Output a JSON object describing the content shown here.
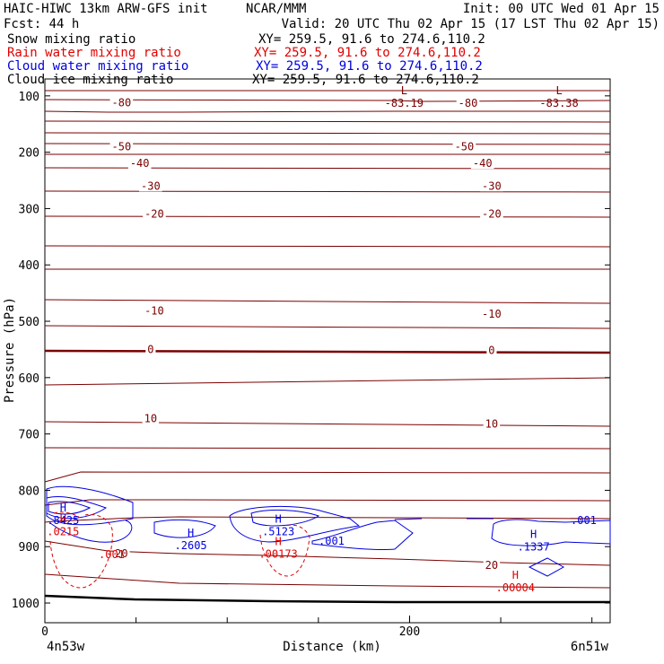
{
  "header": {
    "model_line": "HAIC-HIWC 13km ARW-GFS init",
    "org": "NCAR/MMM",
    "init": "Init: 00 UTC Wed 01 Apr 15",
    "fcst": "Fcst:   44 h",
    "valid": "Valid: 20 UTC Thu 02 Apr 15 (17 LST Thu 02 Apr 15)"
  },
  "fields": [
    {
      "name": "Snow mixing ratio",
      "xy": "XY= 259.5, 91.6 to 274.6,110.2",
      "color": "#000000"
    },
    {
      "name": "Rain water mixing ratio",
      "xy": "XY= 259.5, 91.6 to 274.6,110.2",
      "color": "#e00000"
    },
    {
      "name": "Cloud water mixing ratio",
      "xy": "XY= 259.5, 91.6 to 274.6,110.2",
      "color": "#0000e0"
    },
    {
      "name": "Cloud ice mixing ratio",
      "xy": "XY= 259.5, 91.6 to 274.6,110.2",
      "color": "#000000"
    }
  ],
  "chart_data": {
    "type": "line",
    "subtype": "vertical cross-section contour plot",
    "xlabel": "Distance (km)",
    "ylabel": "Pressure (hPa)",
    "x_ticks": [
      0,
      200
    ],
    "x_range": [
      0,
      310
    ],
    "y_ticks": [
      100,
      200,
      300,
      400,
      500,
      600,
      700,
      800,
      900,
      1000
    ],
    "y_range": [
      70,
      1035
    ],
    "x_start_label": "4n53w",
    "x_end_label": "6n51w",
    "temperature_contour_labels": [
      {
        "text": "-80",
        "x": 42,
        "p": 112
      },
      {
        "text": "-80",
        "x": 232,
        "p": 113
      },
      {
        "text": "-50",
        "x": 42,
        "p": 190
      },
      {
        "text": "-50",
        "x": 230,
        "p": 190
      },
      {
        "text": "-40",
        "x": 52,
        "p": 220
      },
      {
        "text": "-40",
        "x": 240,
        "p": 220
      },
      {
        "text": "-30",
        "x": 58,
        "p": 260
      },
      {
        "text": "-30",
        "x": 245,
        "p": 260
      },
      {
        "text": "-20",
        "x": 60,
        "p": 310
      },
      {
        "text": "-20",
        "x": 245,
        "p": 310
      },
      {
        "text": "-10",
        "x": 60,
        "p": 482
      },
      {
        "text": "-10",
        "x": 245,
        "p": 487
      },
      {
        "text": "0",
        "x": 58,
        "p": 550
      },
      {
        "text": "0",
        "x": 245,
        "p": 552
      },
      {
        "text": "10",
        "x": 58,
        "p": 673
      },
      {
        "text": "10",
        "x": 245,
        "p": 682
      },
      {
        "text": "20",
        "x": 42,
        "p": 912
      },
      {
        "text": "20",
        "x": 245,
        "p": 933
      }
    ],
    "extrema": [
      {
        "kind": "L",
        "value": "-83.19",
        "x": 197,
        "p": 110,
        "field": "temperature"
      },
      {
        "kind": "L",
        "value": "-83.38",
        "x": 282,
        "p": 110,
        "field": "temperature"
      },
      {
        "kind": "H",
        "value": ".8425",
        "x": 10,
        "p": 850,
        "field": "cloud water"
      },
      {
        "kind": "H",
        "value": ".2605",
        "x": 80,
        "p": 895,
        "field": "cloud water"
      },
      {
        "kind": "H",
        "value": ".5123",
        "x": 128,
        "p": 870,
        "field": "cloud water"
      },
      {
        "kind": "H",
        "value": ".1337",
        "x": 268,
        "p": 897,
        "field": "cloud water"
      },
      {
        "kind": "H",
        "value": ".0215",
        "x": 10,
        "p": 870,
        "field": "rain water"
      },
      {
        "kind": "H",
        "value": ".00173",
        "x": 128,
        "p": 910,
        "field": "rain water"
      },
      {
        "kind": "H",
        "value": ".00004",
        "x": 258,
        "p": 970,
        "field": "rain water"
      }
    ],
    "cloud_contour_labels": [
      ".001",
      ".001"
    ],
    "rain_contour_labels": [
      ".001"
    ],
    "grid": false
  }
}
